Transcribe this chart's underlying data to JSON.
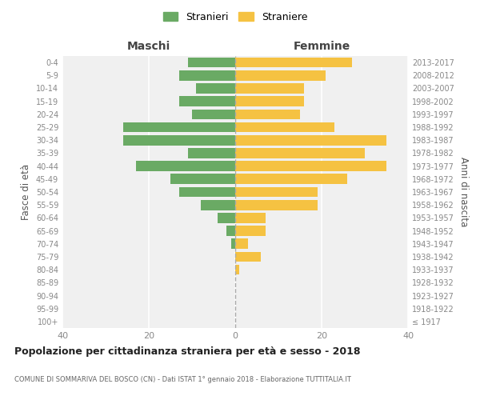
{
  "age_groups": [
    "100+",
    "95-99",
    "90-94",
    "85-89",
    "80-84",
    "75-79",
    "70-74",
    "65-69",
    "60-64",
    "55-59",
    "50-54",
    "45-49",
    "40-44",
    "35-39",
    "30-34",
    "25-29",
    "20-24",
    "15-19",
    "10-14",
    "5-9",
    "0-4"
  ],
  "birth_years": [
    "≤ 1917",
    "1918-1922",
    "1923-1927",
    "1928-1932",
    "1933-1937",
    "1938-1942",
    "1943-1947",
    "1948-1952",
    "1953-1957",
    "1958-1962",
    "1963-1967",
    "1968-1972",
    "1973-1977",
    "1978-1982",
    "1983-1987",
    "1988-1992",
    "1993-1997",
    "1998-2002",
    "2003-2007",
    "2008-2012",
    "2013-2017"
  ],
  "maschi": [
    0,
    0,
    0,
    0,
    0,
    0,
    1,
    2,
    4,
    8,
    13,
    15,
    23,
    11,
    26,
    26,
    10,
    13,
    9,
    13,
    11
  ],
  "femmine": [
    0,
    0,
    0,
    0,
    1,
    6,
    3,
    7,
    7,
    19,
    19,
    26,
    35,
    30,
    35,
    23,
    15,
    16,
    16,
    21,
    27
  ],
  "maschi_color": "#6aaa64",
  "femmine_color": "#f5c242",
  "background_color": "#f0f0f0",
  "title": "Popolazione per cittadinanza straniera per età e sesso - 2018",
  "subtitle": "COMUNE DI SOMMARIVA DEL BOSCO (CN) - Dati ISTAT 1° gennaio 2018 - Elaborazione TUTTITALIA.IT",
  "xlabel_left": "Maschi",
  "xlabel_right": "Femmine",
  "ylabel_left": "Fasce di età",
  "ylabel_right": "Anni di nascita",
  "legend_maschi": "Stranieri",
  "legend_femmine": "Straniere",
  "xlim": 40
}
